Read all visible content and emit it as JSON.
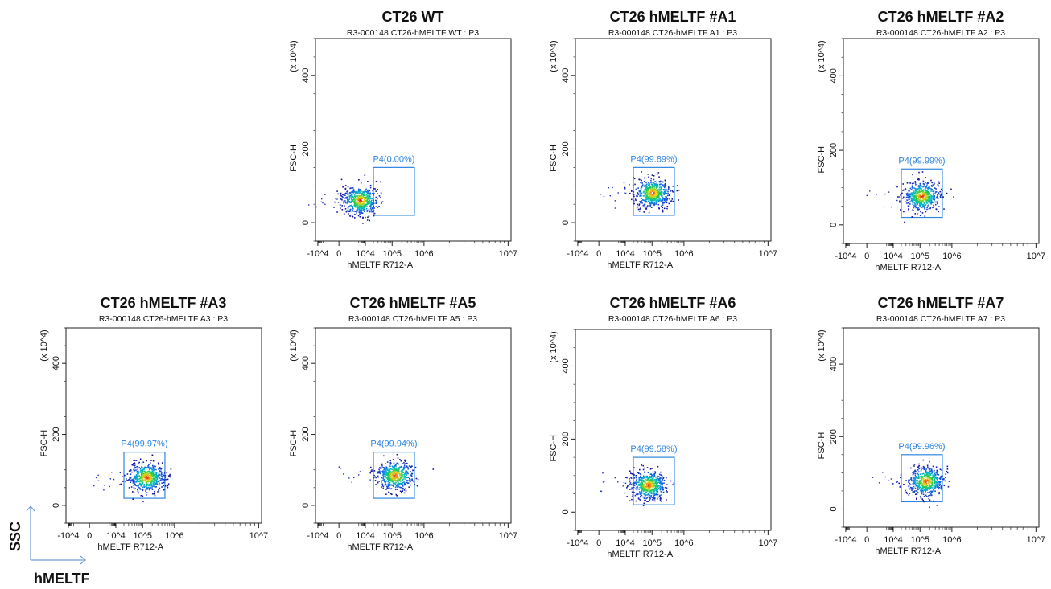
{
  "orientation": {
    "y_label": "SSC",
    "x_label": "hMELTF",
    "arrow_color": "#6f9fd8"
  },
  "gate_color": "#2f86e0",
  "chart_data": [
    {
      "type": "scatter",
      "title": "CT26 WT",
      "subtitle": "R3-000148 CT26-hMELTF WT : P3",
      "xlabel": "hMELTF R712-A",
      "ylabel": "FSC-H",
      "yunit": "(x 10^4)",
      "xscale": "biexponential",
      "xlim": [
        -10000,
        10000000
      ],
      "ylim": [
        -50,
        500
      ],
      "xticks": [
        "-10^4",
        "0",
        "10^4",
        "10^5",
        "10^6",
        "10^7"
      ],
      "yticks": [
        0,
        200,
        400
      ],
      "gate": {
        "name": "P4",
        "label": "P4(0.00%)",
        "x_range": [
          20000,
          500000
        ],
        "y_range": [
          20,
          150
        ]
      },
      "population": {
        "x_center": 1500,
        "y_center": 62
      }
    },
    {
      "type": "scatter",
      "title": "CT26 hMELTF #A1",
      "subtitle": "R3-000148 CT26-hMELTF A1 : P3",
      "xlabel": "hMELTF R712-A",
      "ylabel": "FSC-H",
      "yunit": "(x 10^4)",
      "xscale": "biexponential",
      "xlim": [
        -10000,
        10000000
      ],
      "ylim": [
        -50,
        500
      ],
      "xticks": [
        "-10^4",
        "0",
        "10^4",
        "10^5",
        "10^6",
        "10^7"
      ],
      "yticks": [
        0,
        200,
        400
      ],
      "gate": {
        "name": "P4",
        "label": "P4(99.89%)",
        "x_range": [
          20000,
          500000
        ],
        "y_range": [
          20,
          150
        ]
      },
      "population": {
        "x_center": 100000,
        "y_center": 82
      }
    },
    {
      "type": "scatter",
      "title": "CT26 hMELTF #A2",
      "subtitle": "R3-000148 CT26-hMELTF A2 : P3",
      "xlabel": "hMELTF R712-A",
      "ylabel": "FSC-H",
      "yunit": "(x 10^4)",
      "xscale": "biexponential",
      "xlim": [
        -10000,
        10000000
      ],
      "ylim": [
        -50,
        500
      ],
      "xticks": [
        "-10^4",
        "0",
        "10^4",
        "10^5",
        "10^6",
        "10^7"
      ],
      "yticks": [
        0,
        200,
        400
      ],
      "gate": {
        "name": "P4",
        "label": "P4(99.99%)",
        "x_range": [
          20000,
          500000
        ],
        "y_range": [
          20,
          150
        ]
      },
      "population": {
        "x_center": 110000,
        "y_center": 78
      }
    },
    {
      "type": "scatter",
      "title": "CT26 hMELTF #A3",
      "subtitle": "R3-000148 CT26-hMELTF A3 : P3",
      "xlabel": "hMELTF R712-A",
      "ylabel": "FSC-H",
      "yunit": "(x 10^4)",
      "xscale": "biexponential",
      "xlim": [
        -10000,
        10000000
      ],
      "ylim": [
        -50,
        500
      ],
      "xticks": [
        "-10^4",
        "0",
        "10^4",
        "10^5",
        "10^6",
        "10^7"
      ],
      "yticks": [
        0,
        200,
        400
      ],
      "gate": {
        "name": "P4",
        "label": "P4(99.97%)",
        "x_range": [
          20000,
          500000
        ],
        "y_range": [
          20,
          150
        ]
      },
      "population": {
        "x_center": 130000,
        "y_center": 80
      }
    },
    {
      "type": "scatter",
      "title": "CT26 hMELTF #A5",
      "subtitle": "R3-000148 CT26-hMELTF A5 : P3",
      "xlabel": "hMELTF R712-A",
      "ylabel": "FSC-H",
      "yunit": "(x 10^4)",
      "xscale": "biexponential",
      "xlim": [
        -10000,
        10000000
      ],
      "ylim": [
        -50,
        500
      ],
      "xticks": [
        "-10^4",
        "0",
        "10^4",
        "10^5",
        "10^6",
        "10^7"
      ],
      "yticks": [
        0,
        200,
        400
      ],
      "gate": {
        "name": "P4",
        "label": "P4(99.94%)",
        "x_range": [
          20000,
          500000
        ],
        "y_range": [
          20,
          150
        ]
      },
      "population": {
        "x_center": 120000,
        "y_center": 85
      }
    },
    {
      "type": "scatter",
      "title": "CT26 hMELTF #A6",
      "subtitle": "R3-000148 CT26-hMELTF A6 : P3",
      "xlabel": "hMELTF R712-A",
      "ylabel": "FSC-H",
      "yunit": "(x 10^4)",
      "xscale": "biexponential",
      "xlim": [
        -10000,
        10000000
      ],
      "ylim": [
        -50,
        500
      ],
      "xticks": [
        "-10^4",
        "0",
        "10^4",
        "10^5",
        "10^6",
        "10^7"
      ],
      "yticks": [
        0,
        200,
        400
      ],
      "gate": {
        "name": "P4",
        "label": "P4(99.58%)",
        "x_range": [
          20000,
          500000
        ],
        "y_range": [
          20,
          150
        ]
      },
      "population": {
        "x_center": 70000,
        "y_center": 75
      }
    },
    {
      "type": "scatter",
      "title": "CT26 hMELTF #A7",
      "subtitle": "R3-000148 CT26-hMELTF A7 : P3",
      "xlabel": "hMELTF R712-A",
      "ylabel": "FSC-H",
      "yunit": "(x 10^4)",
      "xscale": "biexponential",
      "xlim": [
        -10000,
        10000000
      ],
      "ylim": [
        -50,
        500
      ],
      "xticks": [
        "-10^4",
        "0",
        "10^4",
        "10^5",
        "10^6",
        "10^7"
      ],
      "yticks": [
        0,
        200,
        400
      ],
      "gate": {
        "name": "P4",
        "label": "P4(99.96%)",
        "x_range": [
          20000,
          500000
        ],
        "y_range": [
          20,
          150
        ]
      },
      "population": {
        "x_center": 150000,
        "y_center": 78
      }
    }
  ]
}
